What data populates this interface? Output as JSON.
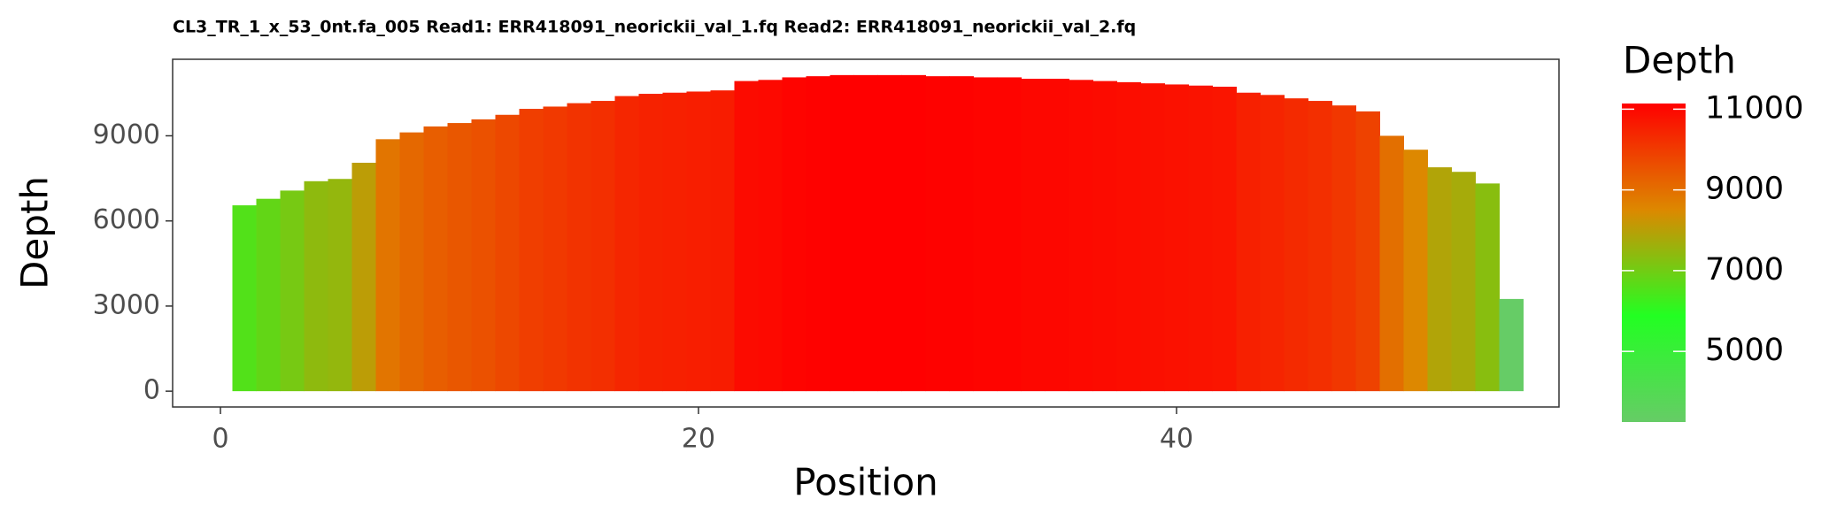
{
  "chart_data": {
    "type": "bar",
    "title": "CL3_TR_1_x_53_0nt.fa_005 Read1: ERR418091_neorickii_val_1.fq Read2: ERR418091_neorickii_val_2.fq",
    "x_label": "Position",
    "y_label": "Depth",
    "legend_title": "Depth",
    "x": [
      1,
      2,
      3,
      4,
      5,
      6,
      7,
      8,
      9,
      10,
      11,
      12,
      13,
      14,
      15,
      16,
      17,
      18,
      19,
      20,
      21,
      22,
      23,
      24,
      25,
      26,
      27,
      28,
      29,
      30,
      31,
      32,
      33,
      34,
      35,
      36,
      37,
      38,
      39,
      40,
      41,
      42,
      43,
      44,
      45,
      46,
      47,
      48,
      49,
      50,
      51,
      52,
      53,
      54
    ],
    "values": [
      6550,
      6780,
      7070,
      7400,
      7480,
      8050,
      8880,
      9120,
      9330,
      9450,
      9580,
      9740,
      9950,
      10030,
      10150,
      10230,
      10400,
      10480,
      10520,
      10560,
      10600,
      10930,
      10970,
      11060,
      11100,
      11140,
      11140,
      11140,
      11140,
      11100,
      11100,
      11060,
      11060,
      11010,
      11010,
      10970,
      10930,
      10890,
      10850,
      10810,
      10770,
      10730,
      10520,
      10440,
      10320,
      10230,
      10070,
      9860,
      9000,
      8510,
      7890,
      7730,
      7320,
      3250
    ],
    "colors": [
      "#66cc66",
      "#22ff22",
      "#dd8800",
      "#ff0000"
    ],
    "xlim": [
      -2,
      56
    ],
    "xticks": [
      0,
      20,
      40
    ],
    "ylim": [
      -557,
      11697
    ],
    "yticks": [
      0,
      3000,
      6000,
      9000
    ],
    "colorbar_ticks": [
      5000,
      7000,
      9000,
      11000
    ]
  }
}
